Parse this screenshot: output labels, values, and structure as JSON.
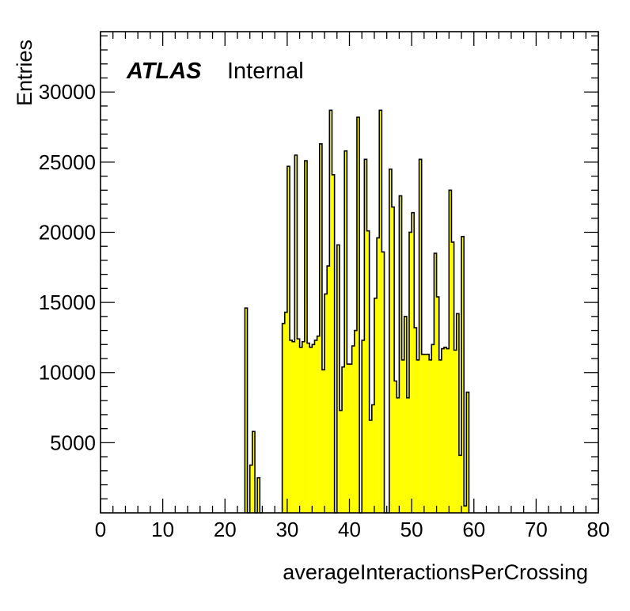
{
  "chart_data": {
    "type": "bar",
    "style": "histogram",
    "xlabel": "averageInteractionsPerCrossing",
    "ylabel": "Entries",
    "xlim": [
      0,
      80
    ],
    "ylim": [
      0,
      34300
    ],
    "x_ticks": [
      "0",
      "10",
      "20",
      "30",
      "40",
      "50",
      "60",
      "70",
      "80"
    ],
    "y_ticks": [
      "5000",
      "10000",
      "15000",
      "20000",
      "25000",
      "30000"
    ],
    "y_tick_values": [
      5000,
      10000,
      15000,
      20000,
      25000,
      30000
    ],
    "label_atlas": "ATLAS",
    "label_status": "Internal",
    "fill_color": "#ffff00",
    "line_color": "#000000",
    "bin_width": 0.4,
    "bins": [
      {
        "x": 23.2,
        "y": 14600
      },
      {
        "x": 23.6,
        "y": 0
      },
      {
        "x": 24.0,
        "y": 3400
      },
      {
        "x": 24.4,
        "y": 5800
      },
      {
        "x": 24.8,
        "y": 0
      },
      {
        "x": 25.2,
        "y": 2500
      },
      {
        "x": 25.6,
        "y": 0
      },
      {
        "x": 29.2,
        "y": 13500
      },
      {
        "x": 29.6,
        "y": 14300
      },
      {
        "x": 30.0,
        "y": 24700
      },
      {
        "x": 30.4,
        "y": 12300
      },
      {
        "x": 30.8,
        "y": 12200
      },
      {
        "x": 31.2,
        "y": 25500
      },
      {
        "x": 31.6,
        "y": 12400
      },
      {
        "x": 32.0,
        "y": 11800
      },
      {
        "x": 32.4,
        "y": 12200
      },
      {
        "x": 32.8,
        "y": 25100
      },
      {
        "x": 33.2,
        "y": 12100
      },
      {
        "x": 33.6,
        "y": 11800
      },
      {
        "x": 34.0,
        "y": 12000
      },
      {
        "x": 34.4,
        "y": 12300
      },
      {
        "x": 34.8,
        "y": 12600
      },
      {
        "x": 35.2,
        "y": 26300
      },
      {
        "x": 35.6,
        "y": 10200
      },
      {
        "x": 36.0,
        "y": 15600
      },
      {
        "x": 36.4,
        "y": 17600
      },
      {
        "x": 36.8,
        "y": 28700
      },
      {
        "x": 37.2,
        "y": 24100
      },
      {
        "x": 37.6,
        "y": 0
      },
      {
        "x": 38.0,
        "y": 19100
      },
      {
        "x": 38.4,
        "y": 7300
      },
      {
        "x": 38.8,
        "y": 10400
      },
      {
        "x": 39.2,
        "y": 25800
      },
      {
        "x": 39.6,
        "y": 10600
      },
      {
        "x": 40.0,
        "y": 10600
      },
      {
        "x": 40.4,
        "y": 11900
      },
      {
        "x": 40.8,
        "y": 13000
      },
      {
        "x": 41.2,
        "y": 28200
      },
      {
        "x": 41.6,
        "y": 0
      },
      {
        "x": 42.0,
        "y": 12300
      },
      {
        "x": 42.4,
        "y": 25200
      },
      {
        "x": 42.8,
        "y": 20100
      },
      {
        "x": 43.2,
        "y": 6600
      },
      {
        "x": 43.6,
        "y": 7700
      },
      {
        "x": 44.0,
        "y": 15300
      },
      {
        "x": 44.4,
        "y": 19600
      },
      {
        "x": 44.8,
        "y": 28700
      },
      {
        "x": 45.2,
        "y": 18600
      },
      {
        "x": 45.6,
        "y": 0
      },
      {
        "x": 46.0,
        "y": 0
      },
      {
        "x": 46.4,
        "y": 24500
      },
      {
        "x": 46.8,
        "y": 21800
      },
      {
        "x": 47.2,
        "y": 9400
      },
      {
        "x": 47.6,
        "y": 8200
      },
      {
        "x": 48.0,
        "y": 22600
      },
      {
        "x": 48.4,
        "y": 10900
      },
      {
        "x": 48.8,
        "y": 14000
      },
      {
        "x": 49.2,
        "y": 8200
      },
      {
        "x": 49.6,
        "y": 20000
      },
      {
        "x": 50.0,
        "y": 21400
      },
      {
        "x": 50.4,
        "y": 13200
      },
      {
        "x": 50.8,
        "y": 10900
      },
      {
        "x": 51.2,
        "y": 25200
      },
      {
        "x": 51.6,
        "y": 11300
      },
      {
        "x": 52.0,
        "y": 11300
      },
      {
        "x": 52.4,
        "y": 11300
      },
      {
        "x": 52.8,
        "y": 10900
      },
      {
        "x": 53.2,
        "y": 12000
      },
      {
        "x": 53.6,
        "y": 18500
      },
      {
        "x": 54.0,
        "y": 15400
      },
      {
        "x": 54.4,
        "y": 10900
      },
      {
        "x": 54.8,
        "y": 11700
      },
      {
        "x": 55.2,
        "y": 11800
      },
      {
        "x": 55.6,
        "y": 11700
      },
      {
        "x": 56.0,
        "y": 23000
      },
      {
        "x": 56.4,
        "y": 19300
      },
      {
        "x": 56.8,
        "y": 11600
      },
      {
        "x": 57.2,
        "y": 14200
      },
      {
        "x": 57.6,
        "y": 4100
      },
      {
        "x": 58.0,
        "y": 19700
      },
      {
        "x": 58.4,
        "y": 500
      },
      {
        "x": 58.8,
        "y": 8600
      }
    ]
  }
}
